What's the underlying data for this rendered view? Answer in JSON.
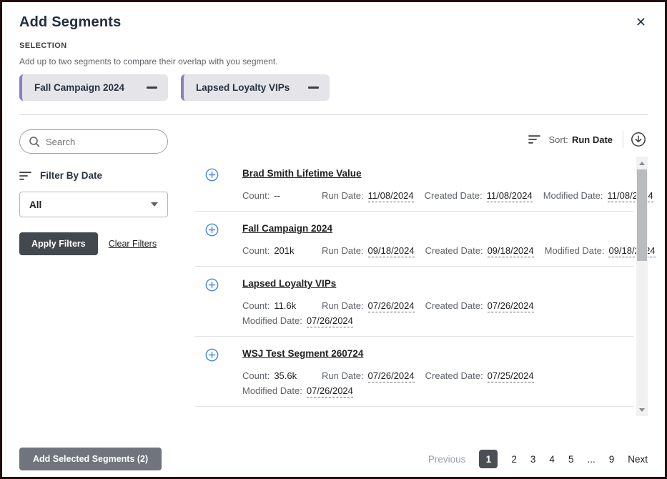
{
  "header": {
    "title": "Add Segments",
    "close_icon": "✕",
    "section_label": "SELECTION",
    "description": "Add up to two segments to compare their overlap with you segment."
  },
  "selected_segments": [
    {
      "label": "Fall Campaign 2024"
    },
    {
      "label": "Lapsed Loyalty VIPs"
    }
  ],
  "sidebar": {
    "search_placeholder": "Search",
    "search_value": "",
    "filter_label": "Filter By Date",
    "date_filter_value": "All",
    "apply_button": "Apply Filters",
    "clear_link": "Clear Filters"
  },
  "sort": {
    "label": "Sort:",
    "value": "Run Date"
  },
  "list": {
    "field_labels": {
      "count": "Count:",
      "run": "Run Date:",
      "created": "Created Date:",
      "modified": "Modified Date:"
    },
    "items": [
      {
        "name": "Brad Smith Lifetime Value",
        "count": "--",
        "run_date": "11/08/2024",
        "created_date": "11/08/2024",
        "modified_date": "11/08/2024",
        "modified_on_second_line": false
      },
      {
        "name": "Fall Campaign 2024",
        "count": "201k",
        "run_date": "09/18/2024",
        "created_date": "09/18/2024",
        "modified_date": "09/18/2024",
        "modified_on_second_line": false
      },
      {
        "name": "Lapsed Loyalty VIPs",
        "count": "11.6k",
        "run_date": "07/26/2024",
        "created_date": "07/26/2024",
        "modified_date": "07/26/2024",
        "modified_on_second_line": true
      },
      {
        "name": "WSJ Test Segment 260724",
        "count": "35.6k",
        "run_date": "07/26/2024",
        "created_date": "07/25/2024",
        "modified_date": "07/26/2024",
        "modified_on_second_line": true
      }
    ]
  },
  "footer": {
    "add_button": "Add Selected Segments (2)",
    "pagination": {
      "previous": "Previous",
      "pages": [
        "1",
        "2",
        "3",
        "4",
        "5",
        "...",
        "9"
      ],
      "active_page": "1",
      "next": "Next"
    }
  },
  "colors": {
    "accent_purple": "#8b7cc8",
    "plus_blue": "#4285f4",
    "apply_button_bg": "#43474e",
    "add_button_bg": "#70757d",
    "active_page_bg": "#4a4f55"
  }
}
